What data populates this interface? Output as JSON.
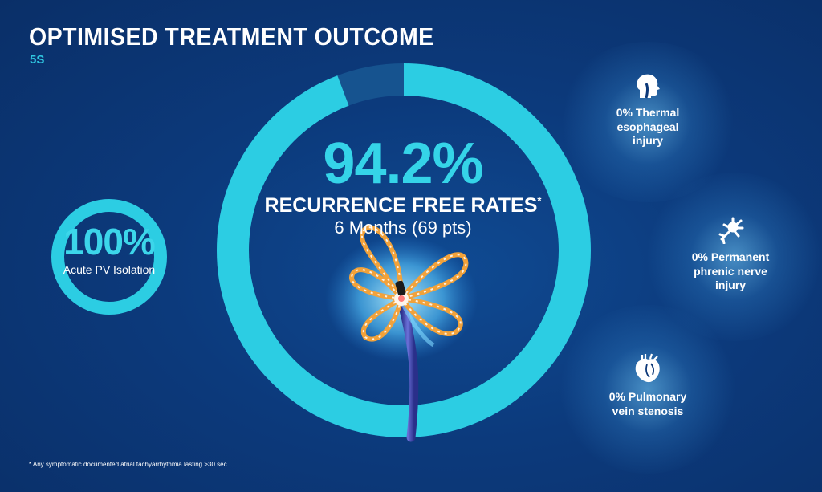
{
  "header": {
    "title": "OPTIMISED TREATMENT OUTCOME",
    "subtitle": "5S"
  },
  "acute": {
    "value": "100%",
    "caption": "Acute PV Isolation",
    "fraction": 1.0
  },
  "recurrence": {
    "value": "94.2%",
    "label": "RECURRENCE FREE RATES",
    "asterisk": "*",
    "period": "6 Months (69 pts)",
    "fraction": 0.942
  },
  "stats": [
    {
      "icon": "throat-icon",
      "lines": [
        "0% Thermal",
        "esophageal",
        "injury"
      ]
    },
    {
      "icon": "nerve-icon",
      "lines": [
        "0% Permanent",
        "phrenic nerve",
        "injury"
      ]
    },
    {
      "icon": "heart-icon",
      "lines": [
        "0% Pulmonary",
        "vein stenosis"
      ]
    }
  ],
  "footnote": "* Any symptomatic documented atrial tachyarrhythmia lasting >30 sec",
  "colors": {
    "background": "#0c3878",
    "accent": "#35d4e8",
    "ring_remainder": "#16538f",
    "catheter_petal": "#f2a23a"
  }
}
